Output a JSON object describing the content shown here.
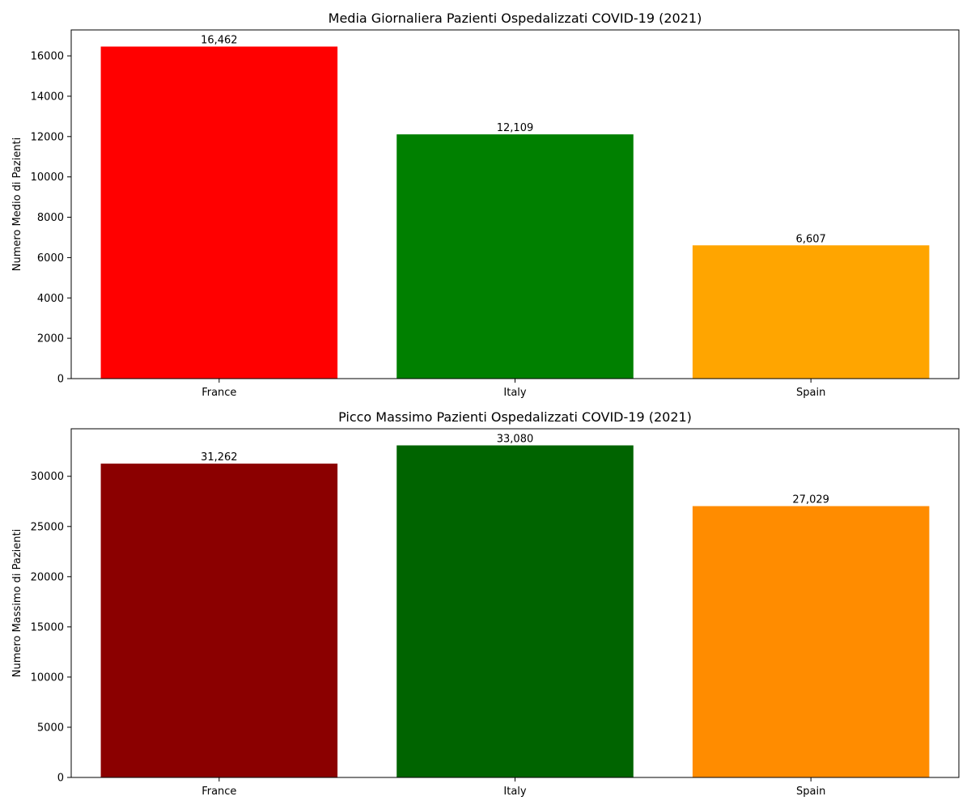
{
  "chart_data": [
    {
      "type": "bar",
      "title": "Media Giornaliera Pazienti Ospedalizzati COVID-19 (2021)",
      "xlabel": "",
      "ylabel": "Numero Medio di Pazienti",
      "categories": [
        "France",
        "Italy",
        "Spain"
      ],
      "values": [
        16462,
        12109,
        6607
      ],
      "value_labels": [
        "16,462",
        "12,109",
        "6,607"
      ],
      "colors": [
        "#ff0000",
        "#008000",
        "#ffa500"
      ],
      "ylim": [
        0,
        17286
      ],
      "yticks": [
        0,
        2000,
        4000,
        6000,
        8000,
        10000,
        12000,
        14000,
        16000
      ],
      "grid": false,
      "legend": "none"
    },
    {
      "type": "bar",
      "title": "Picco Massimo Pazienti Ospedalizzati COVID-19 (2021)",
      "xlabel": "",
      "ylabel": "Numero Massimo di Pazienti",
      "categories": [
        "France",
        "Italy",
        "Spain"
      ],
      "values": [
        31262,
        33080,
        27029
      ],
      "value_labels": [
        "31,262",
        "33,080",
        "27,029"
      ],
      "colors": [
        "#8b0000",
        "#006400",
        "#ff8c00"
      ],
      "ylim": [
        0,
        34734
      ],
      "yticks": [
        0,
        5000,
        10000,
        15000,
        20000,
        25000,
        30000
      ],
      "grid": false,
      "legend": "none"
    }
  ]
}
